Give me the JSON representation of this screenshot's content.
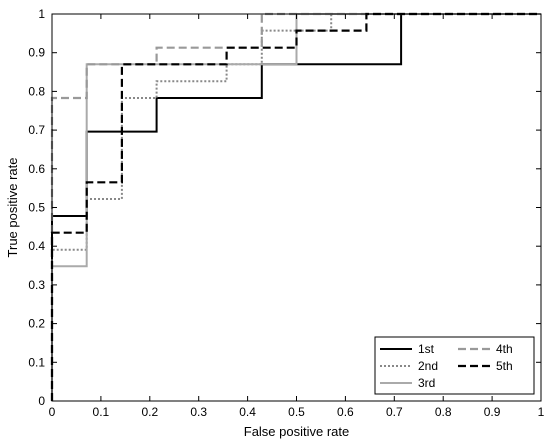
{
  "chart_data": {
    "type": "line",
    "title": "",
    "xlabel": "False positive rate",
    "ylabel": "True positive rate",
    "xlim": [
      0,
      1
    ],
    "ylim": [
      0,
      1
    ],
    "xticks": [
      "0",
      "0.1",
      "0.2",
      "0.3",
      "0.4",
      "0.5",
      "0.6",
      "0.7",
      "0.8",
      "0.9",
      "1"
    ],
    "yticks": [
      "0",
      "0.1",
      "0.2",
      "0.3",
      "0.4",
      "0.5",
      "0.6",
      "0.7",
      "0.8",
      "0.9",
      "1"
    ],
    "grid": false,
    "legend_position": "bottom-right",
    "series": [
      {
        "name": "1st",
        "color": "#000000",
        "style": "solid",
        "points": [
          [
            0,
            0
          ],
          [
            0,
            0.478
          ],
          [
            0.071,
            0.478
          ],
          [
            0.071,
            0.696
          ],
          [
            0.214,
            0.696
          ],
          [
            0.214,
            0.783
          ],
          [
            0.429,
            0.783
          ],
          [
            0.429,
            0.87
          ],
          [
            0.714,
            0.87
          ],
          [
            0.714,
            1
          ],
          [
            1,
            1
          ]
        ]
      },
      {
        "name": "2nd",
        "color": "#888888",
        "style": "dotted",
        "points": [
          [
            0,
            0
          ],
          [
            0,
            0.391
          ],
          [
            0.071,
            0.391
          ],
          [
            0.071,
            0.522
          ],
          [
            0.143,
            0.522
          ],
          [
            0.143,
            0.783
          ],
          [
            0.214,
            0.783
          ],
          [
            0.214,
            0.826
          ],
          [
            0.357,
            0.826
          ],
          [
            0.357,
            0.87
          ],
          [
            0.429,
            0.87
          ],
          [
            0.429,
            0.957
          ],
          [
            0.571,
            0.957
          ],
          [
            0.571,
            1
          ],
          [
            1,
            1
          ]
        ]
      },
      {
        "name": "3rd",
        "color": "#aaaaaa",
        "style": "solid",
        "points": [
          [
            0,
            0
          ],
          [
            0,
            0.348
          ],
          [
            0.071,
            0.348
          ],
          [
            0.071,
            0.87
          ],
          [
            0.5,
            0.87
          ],
          [
            0.5,
            1
          ],
          [
            1,
            1
          ]
        ]
      },
      {
        "name": "4th",
        "color": "#999999",
        "style": "dashed",
        "points": [
          [
            0,
            0
          ],
          [
            0,
            0.783
          ],
          [
            0.071,
            0.783
          ],
          [
            0.071,
            0.87
          ],
          [
            0.214,
            0.87
          ],
          [
            0.214,
            0.913
          ],
          [
            0.429,
            0.913
          ],
          [
            0.429,
            1
          ],
          [
            1,
            1
          ]
        ]
      },
      {
        "name": "5th",
        "color": "#000000",
        "style": "dashed",
        "points": [
          [
            0,
            0
          ],
          [
            0,
            0.435
          ],
          [
            0.071,
            0.435
          ],
          [
            0.071,
            0.565
          ],
          [
            0.143,
            0.565
          ],
          [
            0.143,
            0.87
          ],
          [
            0.357,
            0.87
          ],
          [
            0.357,
            0.913
          ],
          [
            0.5,
            0.913
          ],
          [
            0.5,
            0.957
          ],
          [
            0.643,
            0.957
          ],
          [
            0.643,
            1
          ],
          [
            1,
            1
          ]
        ]
      }
    ]
  }
}
